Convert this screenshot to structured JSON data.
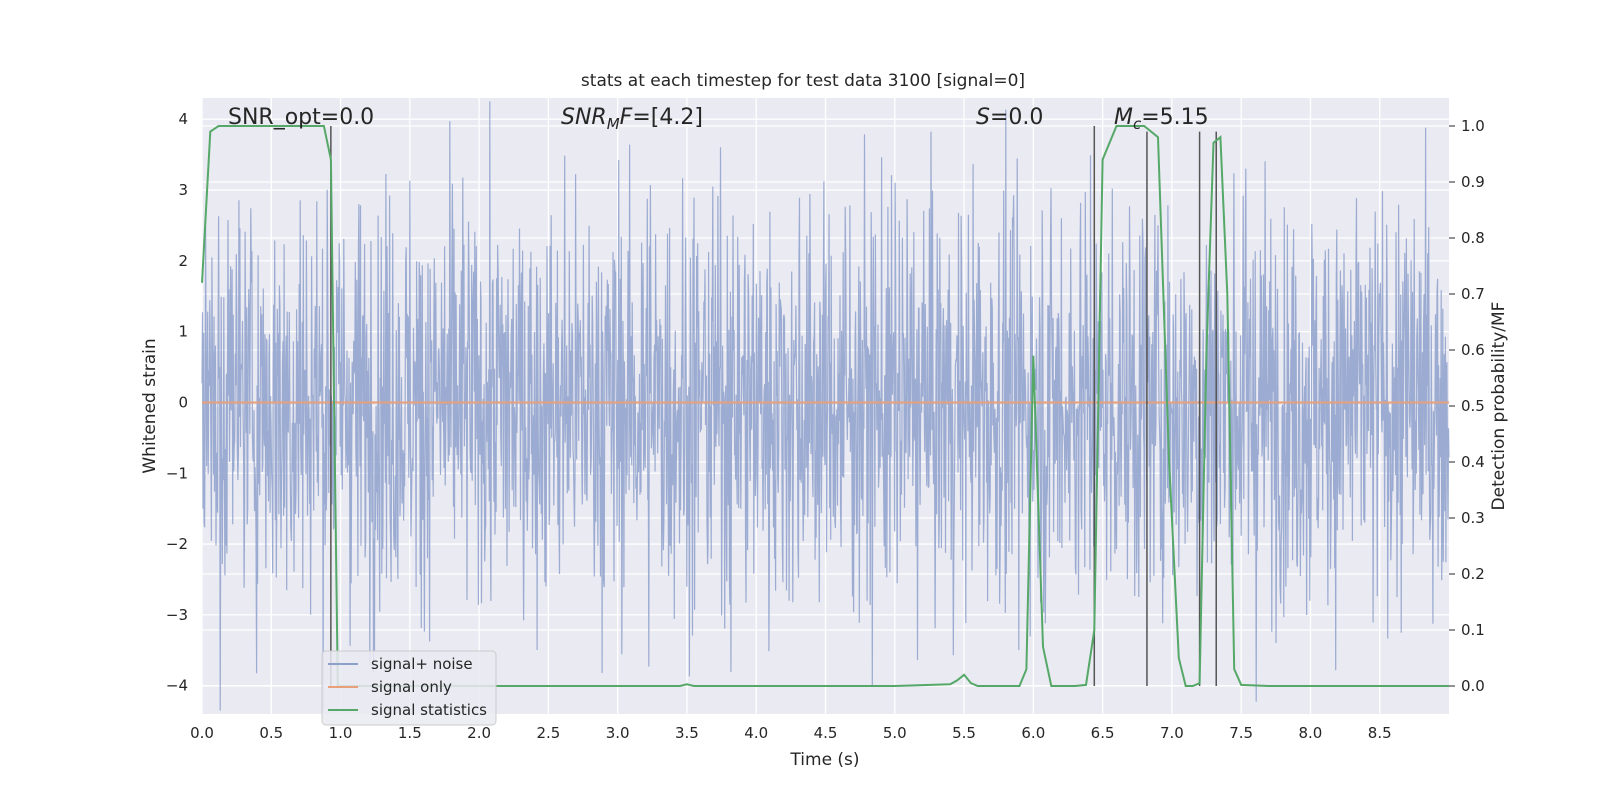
{
  "chart_data": {
    "type": "line",
    "title": "stats at each timestep for test data 3100 [signal=0]",
    "xlabel": "Time (s)",
    "ylabel": "Whitened strain",
    "ylabel_right": "Detection probability/MF",
    "xlim": [
      0.0,
      9.0
    ],
    "ylim": [
      -4.4,
      4.3
    ],
    "ylim_right": [
      -0.05,
      1.05
    ],
    "xticks": [
      "0.0",
      "0.5",
      "1.0",
      "1.5",
      "2.0",
      "2.5",
      "3.0",
      "3.5",
      "4.0",
      "4.5",
      "5.0",
      "5.5",
      "6.0",
      "6.5",
      "7.0",
      "7.5",
      "8.0",
      "8.5"
    ],
    "yticks": [
      "4",
      "3",
      "2",
      "1",
      "0",
      "−1",
      "−2",
      "−3",
      "−4"
    ],
    "yticks_right": [
      "1.0",
      "0.9",
      "0.8",
      "0.7",
      "0.6",
      "0.5",
      "0.4",
      "0.3",
      "0.2",
      "0.1",
      "0.0"
    ],
    "annotations": {
      "snr_opt": "SNR_opt=0.0",
      "snr_mf_sym": "SNR",
      "snr_mf_sub": "M",
      "snr_mf_rest": "F",
      "snr_mf_val": "=[4.2]",
      "s_sym": "S",
      "s_val": "=0.0",
      "mc_sym": "M",
      "mc_sub": "c",
      "mc_val": "=5.15"
    },
    "series": [
      {
        "name": "signal+ noise",
        "color": "#8da0cb",
        "noise_amplitude_typical": 2.3,
        "x_range": [
          0.0,
          9.0
        ]
      },
      {
        "name": "signal only",
        "color": "#e8a07a",
        "x": [
          0.0,
          9.0
        ],
        "y": [
          0.0,
          0.0
        ]
      },
      {
        "name": "signal statistics",
        "color": "#55a868",
        "axis": "right",
        "x": [
          0.0,
          0.06,
          0.12,
          0.2,
          0.5,
          0.8,
          0.88,
          0.93,
          0.98,
          1.02,
          1.2,
          2.0,
          3.0,
          3.45,
          3.5,
          3.55,
          4.0,
          5.0,
          5.4,
          5.45,
          5.5,
          5.55,
          5.6,
          5.9,
          5.95,
          6.0,
          6.07,
          6.13,
          6.3,
          6.38,
          6.44,
          6.5,
          6.6,
          6.8,
          6.9,
          6.98,
          7.05,
          7.1,
          7.15,
          7.2,
          7.25,
          7.3,
          7.35,
          7.4,
          7.45,
          7.5,
          7.7,
          8.0,
          9.0
        ],
        "y": [
          0.72,
          0.99,
          1.0,
          1.0,
          1.0,
          1.0,
          1.0,
          0.94,
          0.0,
          0.0,
          0.0,
          0.0,
          0.0,
          0.0,
          0.003,
          0.0,
          0.0,
          0.0,
          0.003,
          0.01,
          0.02,
          0.005,
          0.0,
          0.0,
          0.03,
          0.59,
          0.07,
          0.0,
          0.0,
          0.002,
          0.1,
          0.94,
          1.0,
          1.0,
          0.98,
          0.4,
          0.05,
          0.0,
          0.0,
          0.005,
          0.6,
          0.97,
          0.98,
          0.7,
          0.03,
          0.002,
          0.0,
          0.0,
          0.0
        ]
      }
    ],
    "vlines_right": [
      {
        "x": 0.93,
        "y0": 0.0,
        "y1": 1.0
      },
      {
        "x": 6.44,
        "y0": 0.0,
        "y1": 1.0
      },
      {
        "x": 6.82,
        "y0": 0.0,
        "y1": 0.99
      },
      {
        "x": 7.2,
        "y0": 0.0,
        "y1": 0.99
      },
      {
        "x": 7.32,
        "y0": 0.0,
        "y1": 0.99
      }
    ],
    "legend": {
      "placement": "lower-left"
    },
    "grid": true
  }
}
